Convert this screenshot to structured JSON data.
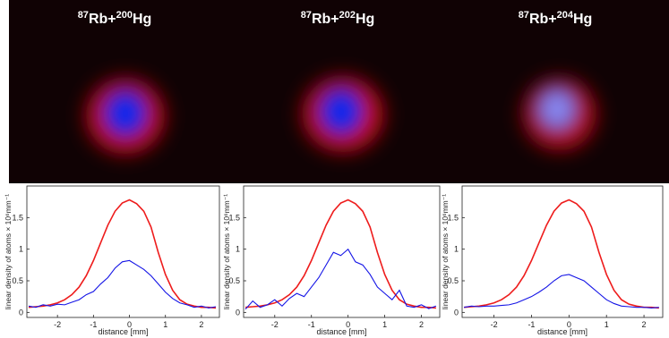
{
  "chart_data": [
    {
      "type": "line",
      "title_parts": [
        "87",
        "Rb+",
        "200",
        "Hg"
      ],
      "x_label": "distance [mm]",
      "y_label": "linear density of atoms × 10⁶mm⁻¹",
      "x": [
        -2.8,
        -2.6,
        -2.4,
        -2.2,
        -2.0,
        -1.8,
        -1.6,
        -1.4,
        -1.2,
        -1.0,
        -0.8,
        -0.6,
        -0.4,
        -0.2,
        0,
        0.2,
        0.4,
        0.6,
        0.8,
        1.0,
        1.2,
        1.4,
        1.6,
        1.8,
        2.0,
        2.2,
        2.4
      ],
      "series": [
        {
          "color": "#ee1c1c",
          "values": [
            0.08,
            0.09,
            0.1,
            0.12,
            0.15,
            0.2,
            0.28,
            0.4,
            0.58,
            0.82,
            1.1,
            1.38,
            1.6,
            1.73,
            1.78,
            1.72,
            1.6,
            1.35,
            0.95,
            0.6,
            0.35,
            0.2,
            0.13,
            0.1,
            0.08,
            0.08,
            0.07
          ]
        },
        {
          "color": "#1414e6",
          "values": [
            0.1,
            0.08,
            0.12,
            0.1,
            0.13,
            0.12,
            0.16,
            0.2,
            0.28,
            0.33,
            0.45,
            0.55,
            0.7,
            0.8,
            0.82,
            0.75,
            0.68,
            0.58,
            0.45,
            0.32,
            0.22,
            0.15,
            0.12,
            0.08,
            0.1,
            0.07,
            0.09
          ]
        }
      ],
      "xlim": [
        -2.85,
        2.5
      ],
      "ylim": [
        -0.08,
        2.0
      ],
      "xticks": [
        -2,
        -1,
        0,
        1,
        2
      ],
      "yticks": [
        0,
        0.5,
        1,
        1.5
      ]
    },
    {
      "type": "line",
      "title_parts": [
        "87",
        "Rb+",
        "202",
        "Hg"
      ],
      "x_label": "distance [mm]",
      "y_label": "linear density of atoms × 10⁶mm⁻¹",
      "x": [
        -2.8,
        -2.6,
        -2.4,
        -2.2,
        -2.0,
        -1.8,
        -1.6,
        -1.4,
        -1.2,
        -1.0,
        -0.8,
        -0.6,
        -0.4,
        -0.2,
        0,
        0.2,
        0.4,
        0.6,
        0.8,
        1.0,
        1.2,
        1.4,
        1.6,
        1.8,
        2.0,
        2.2,
        2.4
      ],
      "series": [
        {
          "color": "#ee1c1c",
          "values": [
            0.08,
            0.09,
            0.1,
            0.12,
            0.15,
            0.2,
            0.28,
            0.4,
            0.58,
            0.82,
            1.1,
            1.38,
            1.6,
            1.73,
            1.78,
            1.72,
            1.6,
            1.35,
            0.95,
            0.6,
            0.35,
            0.2,
            0.13,
            0.1,
            0.08,
            0.08,
            0.07
          ]
        },
        {
          "color": "#1414e6",
          "values": [
            0.05,
            0.18,
            0.08,
            0.12,
            0.2,
            0.1,
            0.22,
            0.3,
            0.25,
            0.4,
            0.55,
            0.75,
            0.95,
            0.9,
            1.0,
            0.8,
            0.75,
            0.6,
            0.4,
            0.3,
            0.2,
            0.35,
            0.1,
            0.08,
            0.12,
            0.06,
            0.1
          ]
        }
      ],
      "xlim": [
        -2.85,
        2.5
      ],
      "ylim": [
        -0.08,
        2.0
      ],
      "xticks": [
        -2,
        -1,
        0,
        1,
        2
      ],
      "yticks": [
        0,
        0.5,
        1,
        1.5
      ]
    },
    {
      "type": "line",
      "title_parts": [
        "87",
        "Rb+",
        "204",
        "Hg"
      ],
      "x_label": "distance [mm]",
      "y_label": "linear density of atoms × 10⁶mm⁻¹",
      "x": [
        -2.8,
        -2.6,
        -2.4,
        -2.2,
        -2.0,
        -1.8,
        -1.6,
        -1.4,
        -1.2,
        -1.0,
        -0.8,
        -0.6,
        -0.4,
        -0.2,
        0,
        0.2,
        0.4,
        0.6,
        0.8,
        1.0,
        1.2,
        1.4,
        1.6,
        1.8,
        2.0,
        2.2,
        2.4
      ],
      "series": [
        {
          "color": "#ee1c1c",
          "values": [
            0.08,
            0.09,
            0.1,
            0.12,
            0.15,
            0.2,
            0.28,
            0.4,
            0.58,
            0.82,
            1.1,
            1.38,
            1.6,
            1.73,
            1.78,
            1.72,
            1.6,
            1.35,
            0.95,
            0.6,
            0.35,
            0.2,
            0.13,
            0.1,
            0.08,
            0.08,
            0.07
          ]
        },
        {
          "color": "#1414e6",
          "values": [
            0.08,
            0.1,
            0.09,
            0.1,
            0.1,
            0.11,
            0.12,
            0.15,
            0.2,
            0.25,
            0.32,
            0.4,
            0.5,
            0.58,
            0.6,
            0.55,
            0.5,
            0.4,
            0.3,
            0.2,
            0.14,
            0.1,
            0.09,
            0.08,
            0.08,
            0.07,
            0.08
          ]
        }
      ],
      "xlim": [
        -2.85,
        2.5
      ],
      "ylim": [
        -0.08,
        2.0
      ],
      "xticks": [
        -2,
        -1,
        0,
        1,
        2
      ],
      "yticks": [
        0,
        0.5,
        1,
        1.5
      ]
    }
  ]
}
